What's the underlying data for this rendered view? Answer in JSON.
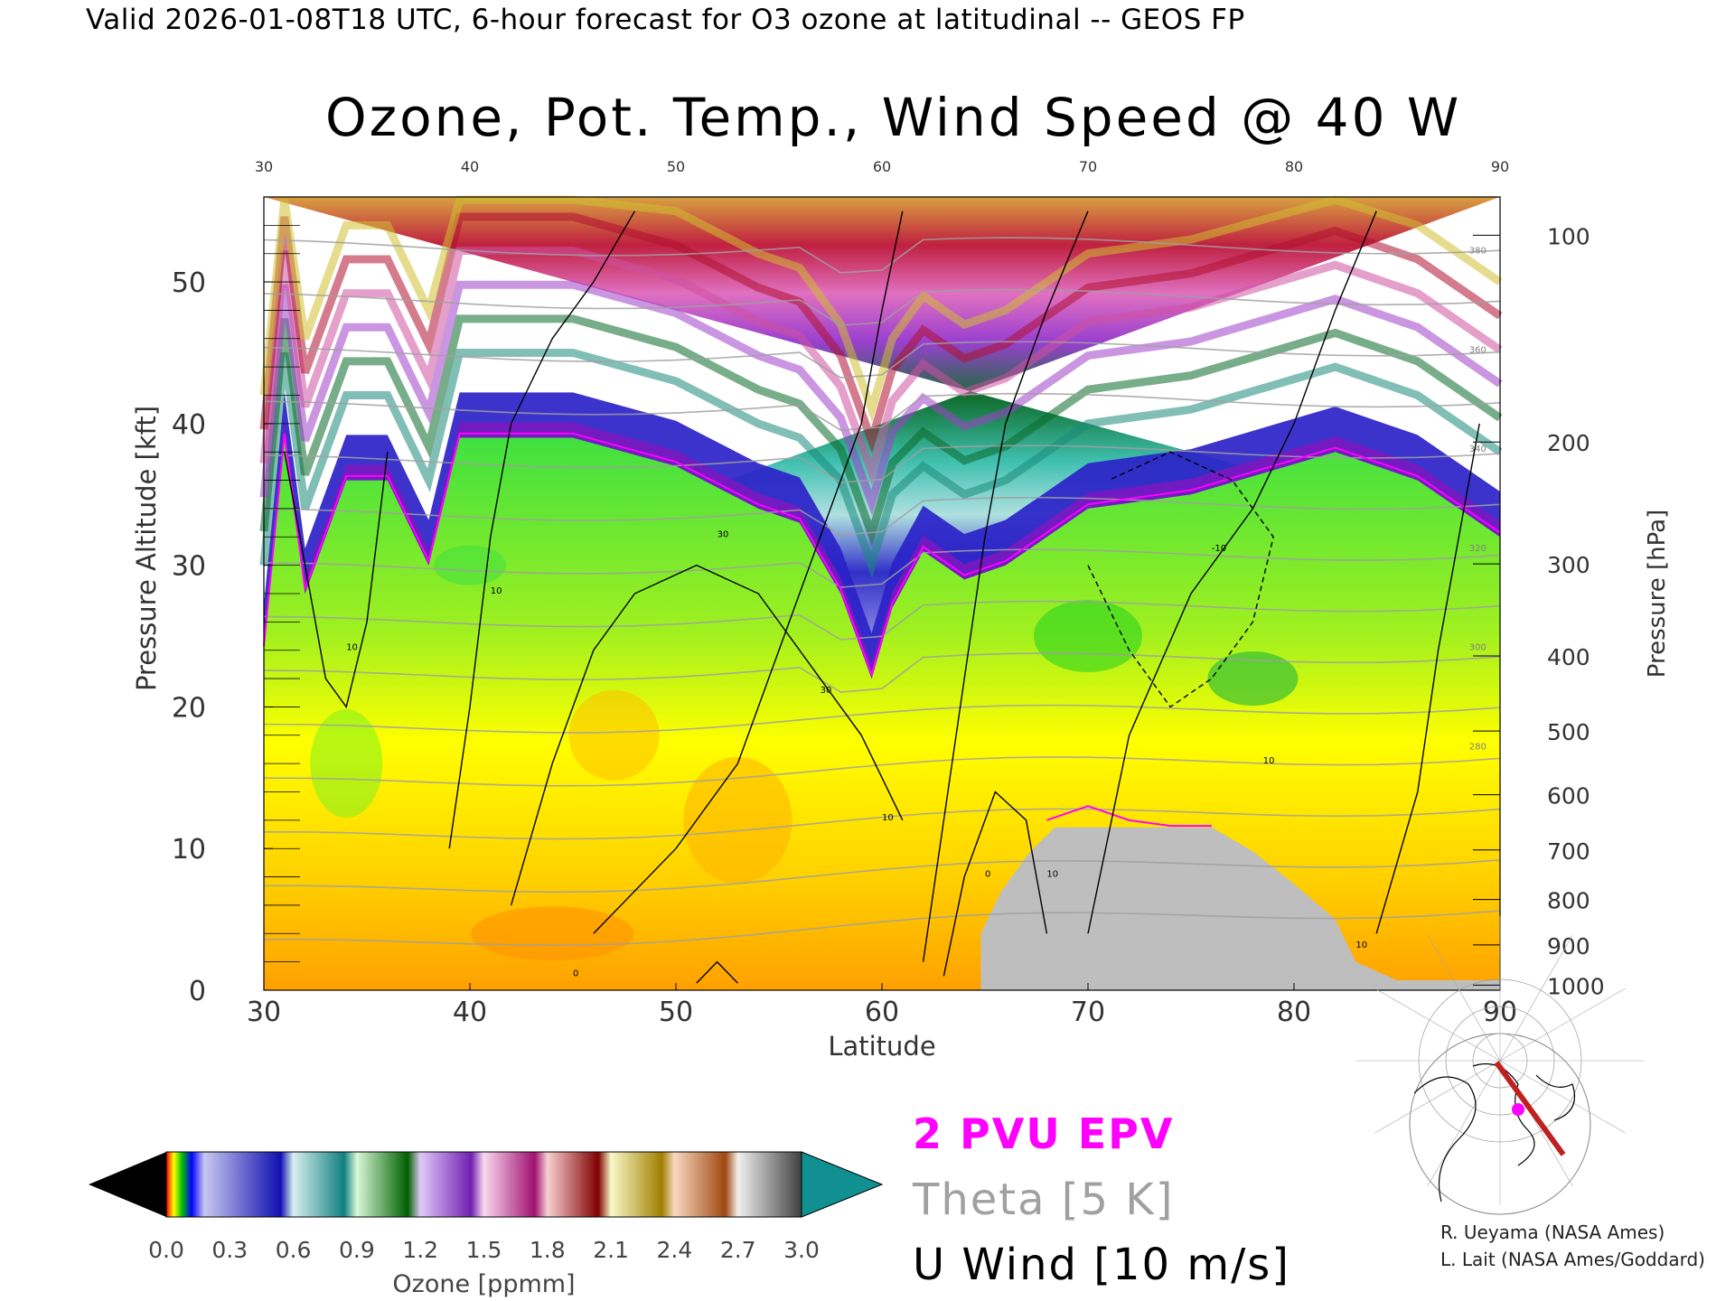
{
  "header": {
    "line": "Valid 2026-01-08T18 UTC, 6-hour forecast for O3 ozone at latitudinal -- GEOS FP"
  },
  "chart_data": {
    "type": "heatmap",
    "title": "Ozone, Pot. Temp., Wind Speed @ 40 W",
    "xlabel": "Latitude",
    "ylabel": "Pressure Altitude [kft]",
    "y2label": "Pressure [hPa]",
    "xlim": [
      30,
      90
    ],
    "ylim": [
      0,
      56
    ],
    "x_ticks": [
      30,
      40,
      50,
      60,
      70,
      80,
      90
    ],
    "x_top_ticks": [
      30,
      40,
      50,
      60,
      70,
      80,
      90
    ],
    "y_ticks": [
      0,
      10,
      20,
      30,
      40,
      50
    ],
    "pressure_ticks": [
      {
        "hpa": 1000,
        "kft": 0.36
      },
      {
        "hpa": 900,
        "kft": 3.2
      },
      {
        "hpa": 800,
        "kft": 6.4
      },
      {
        "hpa": 700,
        "kft": 9.9
      },
      {
        "hpa": 600,
        "kft": 13.8
      },
      {
        "hpa": 500,
        "kft": 18.3
      },
      {
        "hpa": 400,
        "kft": 23.6
      },
      {
        "hpa": 300,
        "kft": 30.1
      },
      {
        "hpa": 200,
        "kft": 38.7
      },
      {
        "hpa": 100,
        "kft": 53.3
      }
    ],
    "colorbar": {
      "label": "Ozone [ppmm]",
      "min": 0.0,
      "max": 3.0,
      "ticks": [
        "0.0",
        "0.3",
        "0.6",
        "0.9",
        "1.2",
        "1.5",
        "1.8",
        "2.1",
        "2.4",
        "2.7",
        "3.0"
      ]
    },
    "ozone_tropopause_kft": [
      {
        "lat": 30,
        "kft": 24
      },
      {
        "lat": 31,
        "kft": 39
      },
      {
        "lat": 32,
        "kft": 28
      },
      {
        "lat": 34,
        "kft": 36
      },
      {
        "lat": 36,
        "kft": 36
      },
      {
        "lat": 38,
        "kft": 30
      },
      {
        "lat": 39.5,
        "kft": 39
      },
      {
        "lat": 45,
        "kft": 39
      },
      {
        "lat": 50,
        "kft": 37
      },
      {
        "lat": 54,
        "kft": 34
      },
      {
        "lat": 56,
        "kft": 33
      },
      {
        "lat": 58,
        "kft": 28
      },
      {
        "lat": 59.5,
        "kft": 22
      },
      {
        "lat": 60.5,
        "kft": 27
      },
      {
        "lat": 62,
        "kft": 31
      },
      {
        "lat": 64,
        "kft": 29
      },
      {
        "lat": 66,
        "kft": 30
      },
      {
        "lat": 70,
        "kft": 34
      },
      {
        "lat": 75,
        "kft": 35
      },
      {
        "lat": 82,
        "kft": 38
      },
      {
        "lat": 86,
        "kft": 36
      },
      {
        "lat": 88,
        "kft": 34
      },
      {
        "lat": 90,
        "kft": 32
      }
    ],
    "terrain_mask": [
      {
        "lat": 64.8,
        "kft": 4
      },
      {
        "lat": 65.8,
        "kft": 7
      },
      {
        "lat": 67.2,
        "kft": 9.8
      },
      {
        "lat": 68.4,
        "kft": 11.5
      },
      {
        "lat": 76,
        "kft": 11.5
      },
      {
        "lat": 78,
        "kft": 9.8
      },
      {
        "lat": 80,
        "kft": 7.5
      },
      {
        "lat": 82,
        "kft": 5
      },
      {
        "lat": 83,
        "kft": 2
      },
      {
        "lat": 85,
        "kft": 0.7
      },
      {
        "lat": 90,
        "kft": 0.7
      }
    ],
    "wind_contour_labels": [
      "10",
      "10",
      "30",
      "30",
      "10",
      "0",
      "0",
      "10",
      "10",
      "-10",
      "10"
    ],
    "theta_contour_labels": [
      "380",
      "360",
      "340",
      "320",
      "300",
      "280"
    ],
    "series": [
      {
        "name": "2 PVU EPV",
        "color": "#ff00ff"
      },
      {
        "name": "Theta [5 K]",
        "color": "#a0a0a0"
      },
      {
        "name": "U Wind [10 m/s]",
        "color": "#000000"
      }
    ]
  },
  "credits": {
    "line1": "R. Ueyama (NASA Ames)",
    "line2": "L. Lait (NASA Ames/Goddard)"
  },
  "colors": {
    "terrain": "#bebebe",
    "pvu": "#ff00ff",
    "theta": "#a0a0a0",
    "wind": "#000000"
  }
}
